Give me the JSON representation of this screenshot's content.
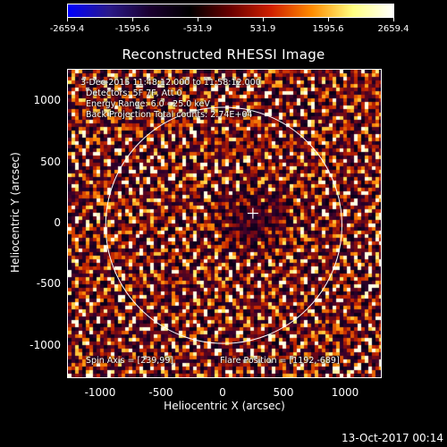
{
  "colorbar": {
    "labels": [
      "-2659.4",
      "-1595.6",
      "-531.9",
      "531.9",
      "1595.6",
      "2659.4"
    ],
    "gradient": [
      "#0000ff",
      "#2a1a8a",
      "#1a0030",
      "#000000",
      "#6a0000",
      "#d02000",
      "#ff8c00",
      "#ffff80",
      "#ffffff"
    ]
  },
  "title": "Reconstructed RHESSI Image",
  "annotations": {
    "time_range": "3-Dec-2015 11:48:12.000 to 11:58:12.000",
    "detectors": "Detectors: 5F 7F, Att 0",
    "energy_range": "Energy Range: 6.0 - 25.0 keV",
    "projection": "Back Projection   Total counts: 2.74E+04",
    "spin_axis": "Spin Axis = [239,99]",
    "flare_position": "Flare Position = [1192,-689]"
  },
  "x_axis": {
    "label": "Heliocentric X (arcsec)",
    "ticks": [
      "-1000",
      "-500",
      "0",
      "500",
      "1000"
    ]
  },
  "y_axis": {
    "label": "Heliocentric Y (arcsec)",
    "ticks": [
      "1000",
      "500",
      "0",
      "-500",
      "-1000"
    ]
  },
  "plot": {
    "x_range": [
      -1280,
      1290
    ],
    "y_range": [
      -1250,
      1280
    ],
    "solar_limb_radius_arcsec": 970,
    "spin_axis_marker": [
      239,
      99
    ]
  },
  "timestamp": "13-Oct-2017 00:14"
}
